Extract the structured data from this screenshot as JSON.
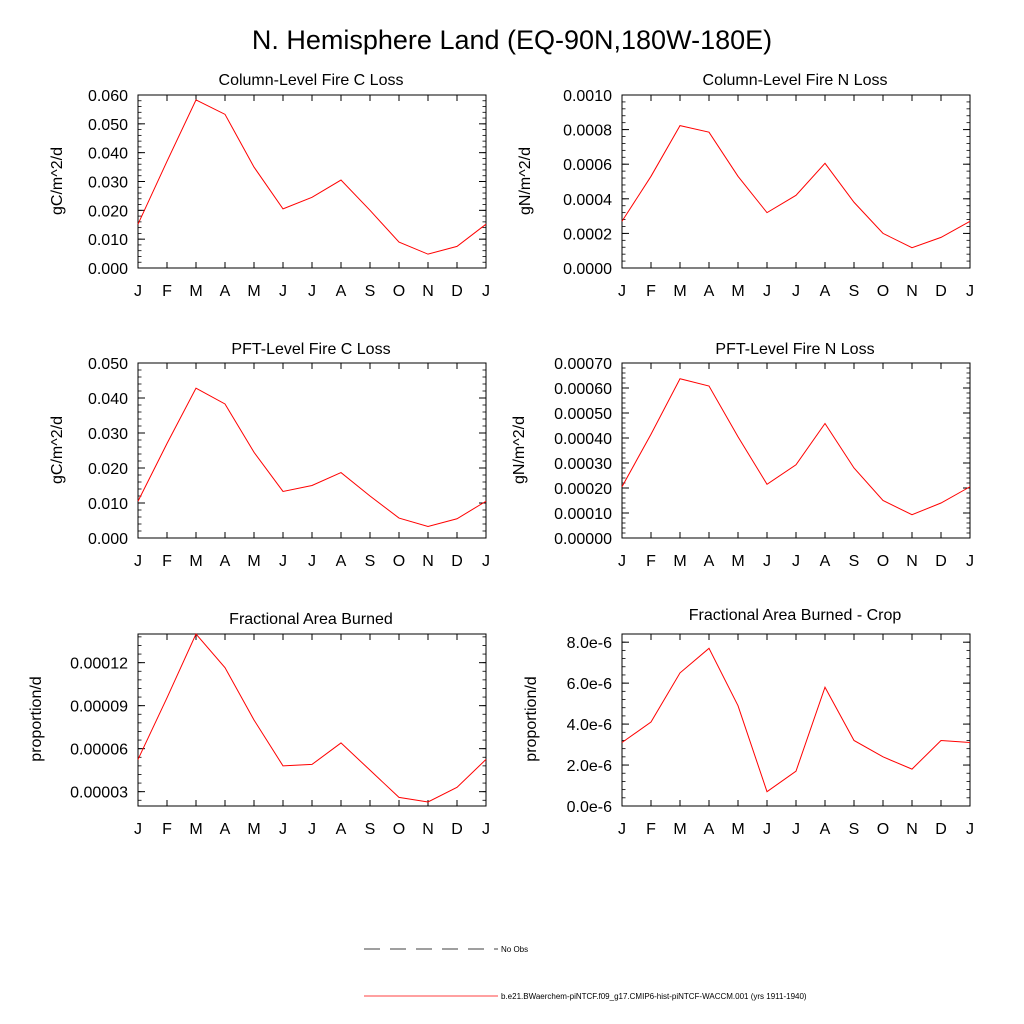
{
  "figure": {
    "title": "N. Hemisphere Land (EQ-90N,180W-180E)",
    "legend": [
      {
        "label": "No Obs",
        "color": "#000000",
        "style": "dashed"
      },
      {
        "label": "b.e21.BWaerchem-piNTCF.f09_g17.CMIP6-hist-piNTCF-WACCM.001 (yrs 1911-1940)",
        "color": "#ff0000",
        "style": "solid"
      }
    ]
  },
  "chart_data": [
    {
      "type": "line",
      "title": "Column-Level Fire C Loss",
      "ylabel": "gC/m^2/d",
      "categories": [
        "J",
        "F",
        "M",
        "A",
        "M",
        "J",
        "J",
        "A",
        "S",
        "O",
        "N",
        "D",
        "J"
      ],
      "ylim": [
        0,
        0.06
      ],
      "yticks": [
        "0.000",
        "0.010",
        "0.020",
        "0.030",
        "0.040",
        "0.050",
        "0.060"
      ],
      "series": [
        {
          "color": "#ff0000",
          "values": [
            0.0152,
            0.037,
            0.0583,
            0.0533,
            0.035,
            0.0205,
            0.0245,
            0.0305,
            0.02,
            0.009,
            0.0048,
            0.0075,
            0.0152
          ]
        }
      ]
    },
    {
      "type": "line",
      "title": "Column-Level Fire N Loss",
      "ylabel": "gN/m^2/d",
      "categories": [
        "J",
        "F",
        "M",
        "A",
        "M",
        "J",
        "J",
        "A",
        "S",
        "O",
        "N",
        "D",
        "J"
      ],
      "ylim": [
        0,
        0.001
      ],
      "yticks": [
        "0.0000",
        "0.0002",
        "0.0004",
        "0.0006",
        "0.0008",
        "0.0010"
      ],
      "series": [
        {
          "color": "#ff0000",
          "values": [
            0.00027,
            0.00053,
            0.000823,
            0.000785,
            0.00053,
            0.00032,
            0.00042,
            0.000605,
            0.00038,
            0.0002,
            0.000117,
            0.000177,
            0.00027
          ]
        }
      ]
    },
    {
      "type": "line",
      "title": "PFT-Level Fire C Loss",
      "ylabel": "gC/m^2/d",
      "categories": [
        "J",
        "F",
        "M",
        "A",
        "M",
        "J",
        "J",
        "A",
        "S",
        "O",
        "N",
        "D",
        "J"
      ],
      "ylim": [
        0,
        0.05
      ],
      "yticks": [
        "0.000",
        "0.010",
        "0.020",
        "0.030",
        "0.040",
        "0.050"
      ],
      "series": [
        {
          "color": "#ff0000",
          "values": [
            0.0105,
            0.027,
            0.0428,
            0.0383,
            0.0245,
            0.0133,
            0.015,
            0.0187,
            0.012,
            0.0057,
            0.0033,
            0.0055,
            0.0105
          ]
        }
      ]
    },
    {
      "type": "line",
      "title": "PFT-Level Fire N Loss",
      "ylabel": "gN/m^2/d",
      "categories": [
        "J",
        "F",
        "M",
        "A",
        "M",
        "J",
        "J",
        "A",
        "S",
        "O",
        "N",
        "D",
        "J"
      ],
      "ylim": [
        0,
        0.0007
      ],
      "yticks": [
        "0.00000",
        "0.00010",
        "0.00020",
        "0.00030",
        "0.00040",
        "0.00050",
        "0.00060",
        "0.00070"
      ],
      "series": [
        {
          "color": "#ff0000",
          "values": [
            0.000205,
            0.000415,
            0.000637,
            0.000608,
            0.000405,
            0.000215,
            0.000293,
            0.000458,
            0.00028,
            0.00015,
            9.3e-05,
            0.00014,
            0.000205
          ]
        }
      ]
    },
    {
      "type": "line",
      "title": "Fractional Area Burned",
      "ylabel": "proportion/d",
      "categories": [
        "J",
        "F",
        "M",
        "A",
        "M",
        "J",
        "J",
        "A",
        "S",
        "O",
        "N",
        "D",
        "J"
      ],
      "ylim": [
        2e-05,
        0.00014
      ],
      "yticks": [
        "0.00003",
        "0.00006",
        "0.00009",
        "0.00012"
      ],
      "ytick_values": [
        3e-05,
        6e-05,
        9e-05,
        0.00012
      ],
      "series": [
        {
          "color": "#ff0000",
          "values": [
            5.25e-05,
            9.55e-05,
            0.00014,
            0.0001165,
            8e-05,
            4.8e-05,
            4.9e-05,
            6.4e-05,
            4.5e-05,
            2.6e-05,
            2.28e-05,
            3.3e-05,
            5.25e-05
          ]
        }
      ]
    },
    {
      "type": "line",
      "title": "Fractional Area Burned - Crop",
      "ylabel": "proportion/d",
      "categories": [
        "J",
        "F",
        "M",
        "A",
        "M",
        "J",
        "J",
        "A",
        "S",
        "O",
        "N",
        "D",
        "J"
      ],
      "ylim": [
        0,
        8.4e-06
      ],
      "yticks": [
        "0.0e-6",
        "2.0e-6",
        "4.0e-6",
        "6.0e-6",
        "8.0e-6"
      ],
      "ytick_values": [
        0,
        2e-06,
        4e-06,
        6e-06,
        8e-06
      ],
      "series": [
        {
          "color": "#ff0000",
          "values": [
            3.1e-06,
            4.1e-06,
            6.5e-06,
            7.7e-06,
            4.9e-06,
            7e-07,
            1.7e-06,
            5.8e-06,
            3.2e-06,
            2.4e-06,
            1.8e-06,
            3.2e-06,
            3.1e-06
          ]
        }
      ]
    }
  ]
}
